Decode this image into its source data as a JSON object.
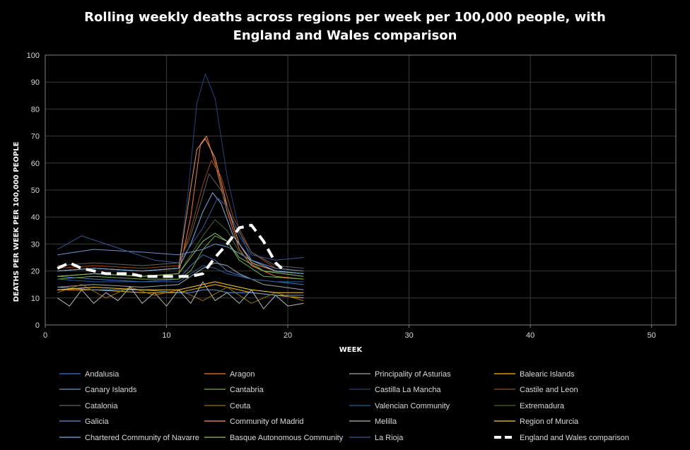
{
  "chart_data": {
    "type": "line",
    "title_lines": [
      "Rolling  weekly deaths  across  regions  per week per 100,000 people, with",
      "England  and  Wales  comparison"
    ],
    "xlabel": "WEEK",
    "ylabel": "DEATHS PER WEEK PER  100,000 PEOPLE",
    "xlim": [
      0,
      52
    ],
    "ylim": [
      0,
      100
    ],
    "xticks": [
      0,
      10,
      20,
      30,
      40,
      50
    ],
    "yticks": [
      0,
      10,
      20,
      30,
      40,
      50,
      60,
      70,
      80,
      90,
      100
    ],
    "grid": true,
    "legend_position": "bottom",
    "series": [
      {
        "name": "Andalusia",
        "color": "#4472c4",
        "points": [
          [
            1,
            18
          ],
          [
            4,
            17
          ],
          [
            8,
            16
          ],
          [
            11,
            17
          ],
          [
            12,
            22
          ],
          [
            13,
            26
          ],
          [
            14,
            24
          ],
          [
            15,
            20
          ],
          [
            17,
            17
          ],
          [
            19,
            16
          ],
          [
            21.3,
            15
          ]
        ]
      },
      {
        "name": "Aragon",
        "color": "#ed7d31",
        "points": [
          [
            1,
            18
          ],
          [
            4,
            19
          ],
          [
            8,
            18
          ],
          [
            11,
            19
          ],
          [
            12,
            40
          ],
          [
            12.8,
            67
          ],
          [
            13.3,
            70
          ],
          [
            14,
            60
          ],
          [
            15,
            42
          ],
          [
            16,
            28
          ],
          [
            17,
            22
          ],
          [
            19,
            18
          ],
          [
            21.3,
            17
          ]
        ]
      },
      {
        "name": "Principality of Asturias",
        "color": "#a5a5a5",
        "points": [
          [
            1,
            14
          ],
          [
            4,
            15
          ],
          [
            8,
            14
          ],
          [
            11,
            15
          ],
          [
            12,
            18
          ],
          [
            13,
            21
          ],
          [
            14,
            23
          ],
          [
            15,
            22
          ],
          [
            16,
            19
          ],
          [
            18,
            15
          ],
          [
            21.3,
            13
          ]
        ]
      },
      {
        "name": "Balearic Islands",
        "color": "#ffc000",
        "points": [
          [
            1,
            13
          ],
          [
            4,
            13
          ],
          [
            8,
            12
          ],
          [
            11,
            12
          ],
          [
            12,
            13
          ],
          [
            13,
            14
          ],
          [
            14,
            15
          ],
          [
            15,
            14
          ],
          [
            17,
            12
          ],
          [
            19,
            11
          ],
          [
            21.3,
            10
          ]
        ]
      },
      {
        "name": "Canary Islands",
        "color": "#5b9bd5",
        "points": [
          [
            1,
            14
          ],
          [
            4,
            13
          ],
          [
            8,
            13
          ],
          [
            11,
            12
          ],
          [
            12,
            12
          ],
          [
            13,
            13
          ],
          [
            14,
            13
          ],
          [
            15,
            12
          ],
          [
            17,
            12
          ],
          [
            19,
            11
          ],
          [
            21.3,
            11
          ]
        ]
      },
      {
        "name": "Cantabria",
        "color": "#70ad47",
        "points": [
          [
            1,
            17
          ],
          [
            4,
            18
          ],
          [
            8,
            17
          ],
          [
            11,
            17
          ],
          [
            12,
            20
          ],
          [
            13,
            28
          ],
          [
            14,
            33
          ],
          [
            15,
            31
          ],
          [
            16,
            24
          ],
          [
            18,
            18
          ],
          [
            21.3,
            17
          ]
        ]
      },
      {
        "name": "Castilla La Mancha",
        "color": "#264478",
        "points": [
          [
            1,
            20
          ],
          [
            4,
            21
          ],
          [
            8,
            20
          ],
          [
            11,
            21
          ],
          [
            11.8,
            50
          ],
          [
            12.5,
            82
          ],
          [
            13.2,
            93
          ],
          [
            14,
            84
          ],
          [
            15,
            55
          ],
          [
            16,
            35
          ],
          [
            17,
            24
          ],
          [
            19,
            20
          ],
          [
            21.3,
            19
          ]
        ]
      },
      {
        "name": "Castile and Leon",
        "color": "#9e480e",
        "points": [
          [
            1,
            21
          ],
          [
            4,
            22
          ],
          [
            8,
            21
          ],
          [
            11,
            22
          ],
          [
            12,
            35
          ],
          [
            13,
            52
          ],
          [
            13.7,
            61
          ],
          [
            14.5,
            55
          ],
          [
            15.5,
            40
          ],
          [
            17,
            27
          ],
          [
            19,
            21
          ],
          [
            21.3,
            20
          ]
        ]
      },
      {
        "name": "Catalonia",
        "color": "#636363",
        "points": [
          [
            1,
            22
          ],
          [
            4,
            23
          ],
          [
            8,
            22
          ],
          [
            11,
            23
          ],
          [
            12,
            33
          ],
          [
            13,
            48
          ],
          [
            13.5,
            56
          ],
          [
            14.5,
            50
          ],
          [
            15.5,
            38
          ],
          [
            17,
            27
          ],
          [
            19,
            22
          ],
          [
            21.3,
            21
          ]
        ]
      },
      {
        "name": "Ceuta",
        "color": "#997300",
        "points": [
          [
            1,
            12
          ],
          [
            3,
            15
          ],
          [
            5,
            10
          ],
          [
            7,
            14
          ],
          [
            9,
            11
          ],
          [
            11,
            13
          ],
          [
            13,
            9
          ],
          [
            15,
            14
          ],
          [
            17,
            8
          ],
          [
            19,
            12
          ],
          [
            21.3,
            9
          ]
        ]
      },
      {
        "name": "Valencian Community",
        "color": "#255e91",
        "points": [
          [
            1,
            17
          ],
          [
            4,
            16
          ],
          [
            8,
            16
          ],
          [
            11,
            16
          ],
          [
            12,
            19
          ],
          [
            13,
            22
          ],
          [
            14,
            21
          ],
          [
            15,
            19
          ],
          [
            17,
            17
          ],
          [
            19,
            16
          ],
          [
            21.3,
            16
          ]
        ]
      },
      {
        "name": "Extremadura",
        "color": "#43682b",
        "points": [
          [
            1,
            18
          ],
          [
            4,
            19
          ],
          [
            8,
            18
          ],
          [
            11,
            19
          ],
          [
            12,
            26
          ],
          [
            13,
            33
          ],
          [
            14,
            39
          ],
          [
            15,
            35
          ],
          [
            16,
            27
          ],
          [
            18,
            20
          ],
          [
            21.3,
            19
          ]
        ]
      },
      {
        "name": "Galicia",
        "color": "#698ed0",
        "points": [
          [
            1,
            26
          ],
          [
            4,
            28
          ],
          [
            8,
            27
          ],
          [
            11,
            26
          ],
          [
            12,
            27
          ],
          [
            13,
            28
          ],
          [
            14,
            30
          ],
          [
            15,
            29
          ],
          [
            17,
            24
          ],
          [
            19,
            21
          ],
          [
            21.3,
            20
          ]
        ]
      },
      {
        "name": "Community of Madrid",
        "color": "#f1975a",
        "points": [
          [
            1,
            20
          ],
          [
            4,
            21
          ],
          [
            8,
            20
          ],
          [
            11,
            21
          ],
          [
            11.8,
            45
          ],
          [
            12.5,
            65
          ],
          [
            13.2,
            69
          ],
          [
            14,
            62
          ],
          [
            15,
            44
          ],
          [
            16,
            30
          ],
          [
            17,
            23
          ],
          [
            19,
            20
          ],
          [
            21.3,
            19
          ]
        ]
      },
      {
        "name": "Melilla",
        "color": "#b7b7b7",
        "points": [
          [
            1,
            10
          ],
          [
            2,
            7
          ],
          [
            3,
            13
          ],
          [
            4,
            8
          ],
          [
            5,
            12
          ],
          [
            6,
            9
          ],
          [
            7,
            14
          ],
          [
            8,
            8
          ],
          [
            9,
            12
          ],
          [
            10,
            7
          ],
          [
            11,
            13
          ],
          [
            12,
            8
          ],
          [
            13,
            16
          ],
          [
            14,
            9
          ],
          [
            15,
            12
          ],
          [
            16,
            8
          ],
          [
            17,
            13
          ],
          [
            18,
            6
          ],
          [
            19,
            11
          ],
          [
            20,
            7
          ],
          [
            21.3,
            8
          ]
        ]
      },
      {
        "name": "Region of Murcia",
        "color": "#ffcd33",
        "points": [
          [
            1,
            13
          ],
          [
            4,
            14
          ],
          [
            8,
            13
          ],
          [
            11,
            13
          ],
          [
            12,
            14
          ],
          [
            13,
            15
          ],
          [
            14,
            16
          ],
          [
            15,
            15
          ],
          [
            17,
            13
          ],
          [
            19,
            12
          ],
          [
            21.3,
            12
          ]
        ]
      },
      {
        "name": "Chartered Community of Navarre",
        "color": "#7cafdd",
        "points": [
          [
            1,
            20
          ],
          [
            4,
            21
          ],
          [
            8,
            20
          ],
          [
            11,
            21
          ],
          [
            12,
            30
          ],
          [
            13,
            42
          ],
          [
            13.8,
            49
          ],
          [
            14.5,
            45
          ],
          [
            15.5,
            33
          ],
          [
            17,
            24
          ],
          [
            19,
            20
          ],
          [
            21.3,
            19
          ]
        ]
      },
      {
        "name": "Basque Autonomous Community",
        "color": "#8cc168",
        "points": [
          [
            1,
            18
          ],
          [
            4,
            19
          ],
          [
            8,
            18
          ],
          [
            11,
            19
          ],
          [
            12,
            25
          ],
          [
            13,
            31
          ],
          [
            14,
            34
          ],
          [
            15,
            31
          ],
          [
            16,
            25
          ],
          [
            18,
            20
          ],
          [
            21.3,
            18
          ]
        ]
      },
      {
        "name": "La Rioja",
        "color": "#3a5895",
        "points": [
          [
            1,
            28
          ],
          [
            3,
            33
          ],
          [
            5,
            30
          ],
          [
            7,
            27
          ],
          [
            9,
            24
          ],
          [
            11,
            23
          ],
          [
            13,
            36
          ],
          [
            14.2,
            47
          ],
          [
            15,
            44
          ],
          [
            16,
            33
          ],
          [
            17,
            26
          ],
          [
            19,
            24
          ],
          [
            21.3,
            25
          ]
        ]
      },
      {
        "name": "England and Wales comparison",
        "color": "#ffffff",
        "dashed": true,
        "points": [
          [
            1,
            21
          ],
          [
            2,
            23
          ],
          [
            3,
            21
          ],
          [
            4,
            20
          ],
          [
            5,
            19
          ],
          [
            6,
            19
          ],
          [
            7,
            19
          ],
          [
            8,
            18
          ],
          [
            9,
            18
          ],
          [
            10,
            18
          ],
          [
            11,
            18
          ],
          [
            12,
            18
          ],
          [
            13,
            19
          ],
          [
            14,
            25
          ],
          [
            15,
            30
          ],
          [
            16,
            36
          ],
          [
            17,
            37
          ],
          [
            18,
            31
          ],
          [
            19,
            23
          ],
          [
            19.5,
            21
          ]
        ]
      }
    ]
  }
}
